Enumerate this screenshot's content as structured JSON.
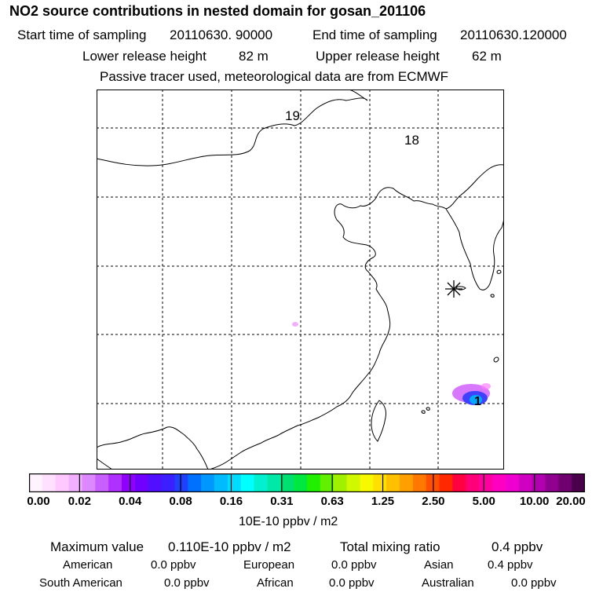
{
  "header": {
    "title": "NO2 source contributions in nested domain for gosan_201106",
    "start_label": "Start time of sampling",
    "start_value": "20110630. 90000",
    "end_label": "End time of sampling",
    "end_value": "20110630.120000",
    "lower_label": "Lower release height",
    "lower_value": "82 m",
    "upper_label": "Upper release height",
    "upper_value": "62 m",
    "tracer_note": "Passive tracer used, meteorological data are from ECMWF"
  },
  "map": {
    "labels": [
      "19",
      "18",
      "1"
    ],
    "station_marker": "asterisk-icon"
  },
  "colorbar": {
    "ticks": [
      "0.00",
      "0.02",
      "0.04",
      "0.08",
      "0.16",
      "0.31",
      "0.63",
      "1.25",
      "2.50",
      "5.00",
      "10.00",
      "20.00"
    ],
    "colors": [
      "#fff3ff",
      "#ffe0ff",
      "#ffc8ff",
      "#f0b0ff",
      "#dc88ff",
      "#c860ff",
      "#b030ff",
      "#9000ff",
      "#7000ff",
      "#5010ff",
      "#3a20ff",
      "#2040ff",
      "#0070ff",
      "#0098ff",
      "#00bcff",
      "#00dcff",
      "#00ffff",
      "#00f0d0",
      "#00e8a8",
      "#00e070",
      "#00e840",
      "#20f000",
      "#60f000",
      "#a0f000",
      "#d0f800",
      "#f8f800",
      "#ffe000",
      "#ffc000",
      "#ffa000",
      "#ff7800",
      "#ff5000",
      "#ff2800",
      "#ff0040",
      "#ff0078",
      "#ff00a0",
      "#ff00c0",
      "#f000d0",
      "#d000c0",
      "#b000b0",
      "#900090",
      "#700070",
      "#4a004a"
    ],
    "unit": "10E-10 ppbv / m2"
  },
  "summary": {
    "max_label": "Maximum value",
    "max_value": "0.110E-10 ppbv / m2",
    "total_label": "Total mixing ratio",
    "total_value": "0.4 ppbv",
    "regions": [
      {
        "name": "American",
        "value": "0.0 ppbv"
      },
      {
        "name": "European",
        "value": "0.0 ppbv"
      },
      {
        "name": "Asian",
        "value": "0.4 ppbv"
      },
      {
        "name": "South American",
        "value": "0.0 ppbv"
      },
      {
        "name": "African",
        "value": "0.0 ppbv"
      },
      {
        "name": "Australian",
        "value": "0.0 ppbv"
      }
    ]
  }
}
